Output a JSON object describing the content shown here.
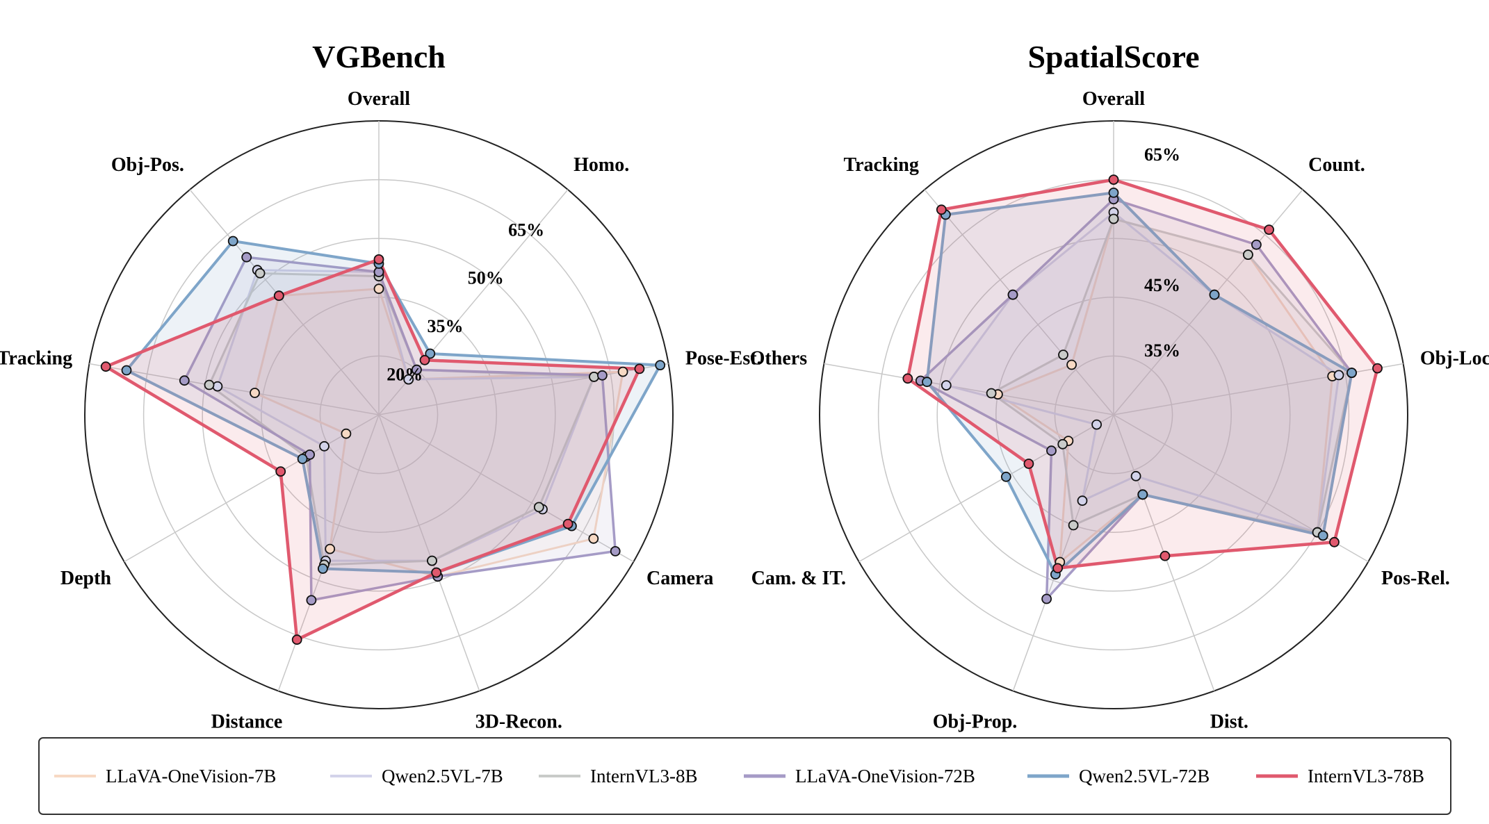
{
  "chart_data": [
    {
      "type": "radar",
      "title": "VGBench",
      "axes": [
        "Overall",
        "Homo.",
        "Pose-Est.",
        "Camera",
        "3D-Recon.",
        "Distance",
        "Depth",
        "Tracking",
        "Obj-Pos."
      ],
      "tick_labels": [
        "20%",
        "35%",
        "50%",
        "65%"
      ],
      "tick_values": [
        20,
        35,
        50,
        65
      ],
      "tick_axis": "Homo.",
      "r_min": 5,
      "r_max": 75,
      "grid": true,
      "series": [
        {
          "name": "LLaVA-OneVision-7B",
          "values": [
            35,
            16,
            64,
            64,
            46,
            39,
            14,
            35,
            42
          ]
        },
        {
          "name": "Qwen2.5VL-7B",
          "values": [
            39,
            16,
            57,
            50,
            42,
            42,
            20,
            44,
            50
          ]
        },
        {
          "name": "InternVL3-8B",
          "values": [
            38,
            19,
            57,
            49,
            42,
            43,
            25,
            46,
            49
          ]
        },
        {
          "name": "LLaVA-OneVision-72B",
          "values": [
            39,
            19,
            59,
            70,
            46,
            52,
            24,
            52,
            54
          ]
        },
        {
          "name": "Qwen2.5VL-72B",
          "values": [
            41,
            24,
            73,
            58,
            45,
            44,
            26,
            66,
            59
          ]
        },
        {
          "name": "InternVL3-78B",
          "values": [
            42,
            22,
            68,
            57,
            45,
            62,
            32,
            71,
            42
          ]
        }
      ]
    },
    {
      "type": "radar",
      "title": "SpatialScore",
      "axes": [
        "Overall",
        "Count.",
        "Obj-Loc.",
        "Pos-Rel.",
        "Dist.",
        "Obj-Prop.",
        "Cam. & IT.",
        "Others",
        "Tracking"
      ],
      "axis_order_note": "",
      "tick_labels": [
        "35%",
        "45%",
        "65%"
      ],
      "tick_values": [
        35,
        45,
        65
      ],
      "tick_axis": "Overall",
      "r_min": 25,
      "r_max": 70,
      "grid": true,
      "series": [
        {
          "name": "LLaVA-OneVision-7B",
          "values": [
            55,
            57,
            59,
            61,
            38,
            49,
            33,
            43,
            35
          ]
        },
        {
          "name": "Qwen2.5VL-7B",
          "values": [
            56,
            49,
            60,
            61,
            35,
            39,
            28,
            51,
            49
          ]
        },
        {
          "name": "InternVL3-8B",
          "values": [
            55,
            57,
            62,
            61,
            38,
            43,
            34,
            44,
            37
          ]
        },
        {
          "name": "LLaVA-OneVision-72B",
          "values": [
            58,
            59,
            62,
            62,
            38,
            55,
            36,
            55,
            49
          ]
        },
        {
          "name": "Qwen2.5VL-72B",
          "values": [
            59,
            49,
            62,
            62,
            38,
            51,
            44,
            54,
            65
          ]
        },
        {
          "name": "InternVL3-78B",
          "values": [
            61,
            62,
            66,
            64,
            48,
            50,
            40,
            57,
            66
          ]
        }
      ]
    }
  ],
  "legend": {
    "items": [
      {
        "name": "LLaVA-OneVision-7B",
        "color": "#f7d9c4"
      },
      {
        "name": "Qwen2.5VL-7B",
        "color": "#d3d3ea"
      },
      {
        "name": "InternVL3-8B",
        "color": "#c9cbc9"
      },
      {
        "name": "LLaVA-OneVision-72B",
        "color": "#a59bc6"
      },
      {
        "name": "Qwen2.5VL-72B",
        "color": "#7ea5c9"
      },
      {
        "name": "InternVL3-78B",
        "color": "#e0596e"
      }
    ]
  },
  "colors": {
    "LLaVA-OneVision-7B": "#f7d9c4",
    "Qwen2.5VL-7B": "#d3d3ea",
    "InternVL3-8B": "#c9cbc9",
    "LLaVA-OneVision-72B": "#a59bc6",
    "Qwen2.5VL-72B": "#7ea5c9",
    "InternVL3-78B": "#e0596e"
  }
}
